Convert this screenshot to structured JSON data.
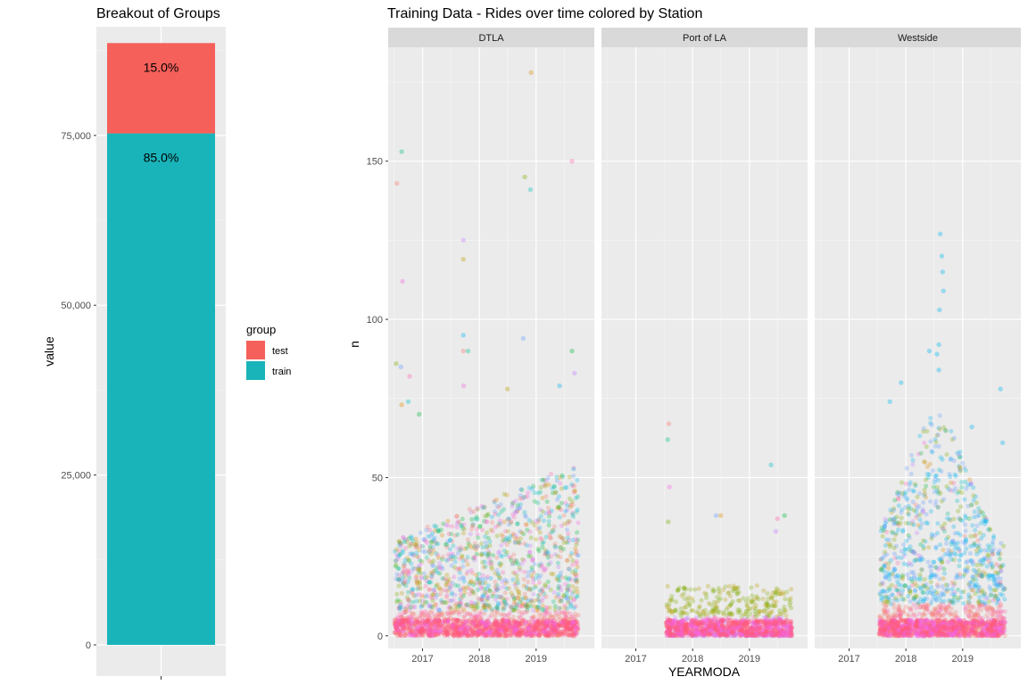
{
  "chart_data": [
    {
      "type": "bar",
      "stacked": true,
      "title": "Breakout of Groups",
      "xlabel": "",
      "ylabel": "value",
      "ylim": [
        0,
        91000
      ],
      "yticks": [
        0,
        25000,
        50000,
        75000
      ],
      "ytick_labels": [
        "0",
        "25,000",
        "50,000",
        "75,000"
      ],
      "categories": [
        ""
      ],
      "series": [
        {
          "name": "train",
          "values": [
            75300
          ],
          "label": "85.0%",
          "color": "#19B4B9"
        },
        {
          "name": "test",
          "values": [
            13300
          ],
          "label": "15.0%",
          "color": "#F5605B"
        }
      ],
      "legend": {
        "title": "group",
        "position": "right",
        "items": [
          "test",
          "train"
        ]
      },
      "grid": true
    },
    {
      "type": "scatter",
      "title": "Training Data - Rides over time colored by Station",
      "xlabel": "YEARMODA",
      "ylabel": "n",
      "ylim": [
        -4,
        186
      ],
      "yticks": [
        0,
        50,
        100,
        150
      ],
      "ytick_labels": [
        "0",
        "50",
        "100",
        "150"
      ],
      "xlim": [
        "2016-05-25",
        "2020-01-10"
      ],
      "xticks": [
        "2017-01-01",
        "2018-01-01",
        "2019-01-01"
      ],
      "xtick_labels": [
        "2017",
        "2018",
        "2019"
      ],
      "facets": [
        {
          "name": "DTLA",
          "date_range": [
            "2016-07-07",
            "2019-09-30"
          ],
          "outliers": [
            {
              "x": "2016-07-20",
              "y": 143
            },
            {
              "x": "2016-08-20",
              "y": 153
            },
            {
              "x": "2016-08-25",
              "y": 112
            },
            {
              "x": "2016-07-15",
              "y": 86
            },
            {
              "x": "2016-08-15",
              "y": 85
            },
            {
              "x": "2016-08-20",
              "y": 73
            },
            {
              "x": "2016-10-01",
              "y": 74
            },
            {
              "x": "2016-10-10",
              "y": 82
            },
            {
              "x": "2016-12-10",
              "y": 70
            },
            {
              "x": "2017-09-20",
              "y": 125
            },
            {
              "x": "2017-09-20",
              "y": 119
            },
            {
              "x": "2017-09-20",
              "y": 95
            },
            {
              "x": "2017-09-20",
              "y": 90
            },
            {
              "x": "2017-10-20",
              "y": 90
            },
            {
              "x": "2017-09-22",
              "y": 79
            },
            {
              "x": "2018-10-20",
              "y": 145
            },
            {
              "x": "2018-10-10",
              "y": 94
            },
            {
              "x": "2018-11-30",
              "y": 178
            },
            {
              "x": "2018-11-25",
              "y": 141
            },
            {
              "x": "2019-08-20",
              "y": 150
            },
            {
              "x": "2019-08-20",
              "y": 90
            },
            {
              "x": "2019-09-05",
              "y": 83
            },
            {
              "x": "2018-07-01",
              "y": 78
            },
            {
              "x": "2019-06-01",
              "y": 79
            }
          ]
        },
        {
          "name": "Port of LA",
          "date_range": [
            "2017-07-15",
            "2019-10-01"
          ],
          "outliers": [
            {
              "x": "2017-08-01",
              "y": 67
            },
            {
              "x": "2017-07-25",
              "y": 62
            },
            {
              "x": "2017-08-05",
              "y": 47
            },
            {
              "x": "2017-07-28",
              "y": 36
            },
            {
              "x": "2018-06-01",
              "y": 38
            },
            {
              "x": "2018-07-01",
              "y": 38
            },
            {
              "x": "2019-05-20",
              "y": 54
            },
            {
              "x": "2019-07-01",
              "y": 37
            },
            {
              "x": "2019-08-15",
              "y": 38
            },
            {
              "x": "2019-06-20",
              "y": 33
            }
          ]
        },
        {
          "name": "Westside",
          "date_range": [
            "2017-07-15",
            "2019-09-30"
          ],
          "outliers": [
            {
              "x": "2018-08-10",
              "y": 127
            },
            {
              "x": "2018-08-20",
              "y": 120
            },
            {
              "x": "2018-08-25",
              "y": 115
            },
            {
              "x": "2018-08-30",
              "y": 109
            },
            {
              "x": "2018-08-05",
              "y": 103
            },
            {
              "x": "2018-08-01",
              "y": 92
            },
            {
              "x": "2018-07-20",
              "y": 89
            },
            {
              "x": "2018-06-01",
              "y": 90
            },
            {
              "x": "2018-08-01",
              "y": 84
            },
            {
              "x": "2019-09-01",
              "y": 78
            },
            {
              "x": "2017-09-20",
              "y": 74
            },
            {
              "x": "2017-12-01",
              "y": 80
            },
            {
              "x": "2019-09-15",
              "y": 61
            },
            {
              "x": "2019-03-01",
              "y": 66
            }
          ]
        }
      ],
      "grid": true
    }
  ]
}
